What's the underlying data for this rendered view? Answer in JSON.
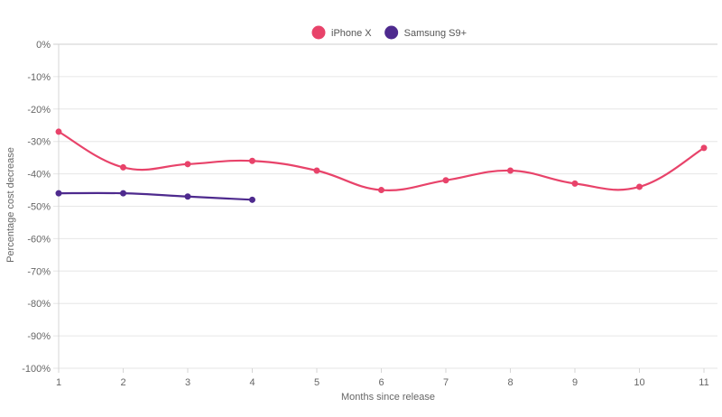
{
  "chart_data": {
    "type": "line",
    "xlabel": "Months since release",
    "ylabel": "Percentage cost decrease",
    "x_ticks": [
      "1",
      "2",
      "3",
      "4",
      "5",
      "6",
      "7",
      "8",
      "9",
      "10",
      "11"
    ],
    "y_ticks": [
      "0%",
      "-10%",
      "-20%",
      "-30%",
      "-40%",
      "-50%",
      "-60%",
      "-70%",
      "-80%",
      "-90%",
      "-100%"
    ],
    "ylim": [
      -100,
      0
    ],
    "xlim": [
      1,
      11
    ],
    "grid": true,
    "legend_position": "top-center",
    "series": [
      {
        "name": "iPhone X",
        "color": "#e8436a",
        "x": [
          1,
          2,
          3,
          4,
          5,
          6,
          7,
          8,
          9,
          10,
          11
        ],
        "values": [
          -27,
          -38,
          -37,
          -36,
          -39,
          -45,
          -42,
          -39,
          -43,
          -44,
          -32
        ]
      },
      {
        "name": "Samsung S9+",
        "color": "#4e2a8e",
        "x": [
          1,
          2,
          3,
          4
        ],
        "values": [
          -46,
          -46,
          -47,
          -48
        ]
      }
    ]
  }
}
